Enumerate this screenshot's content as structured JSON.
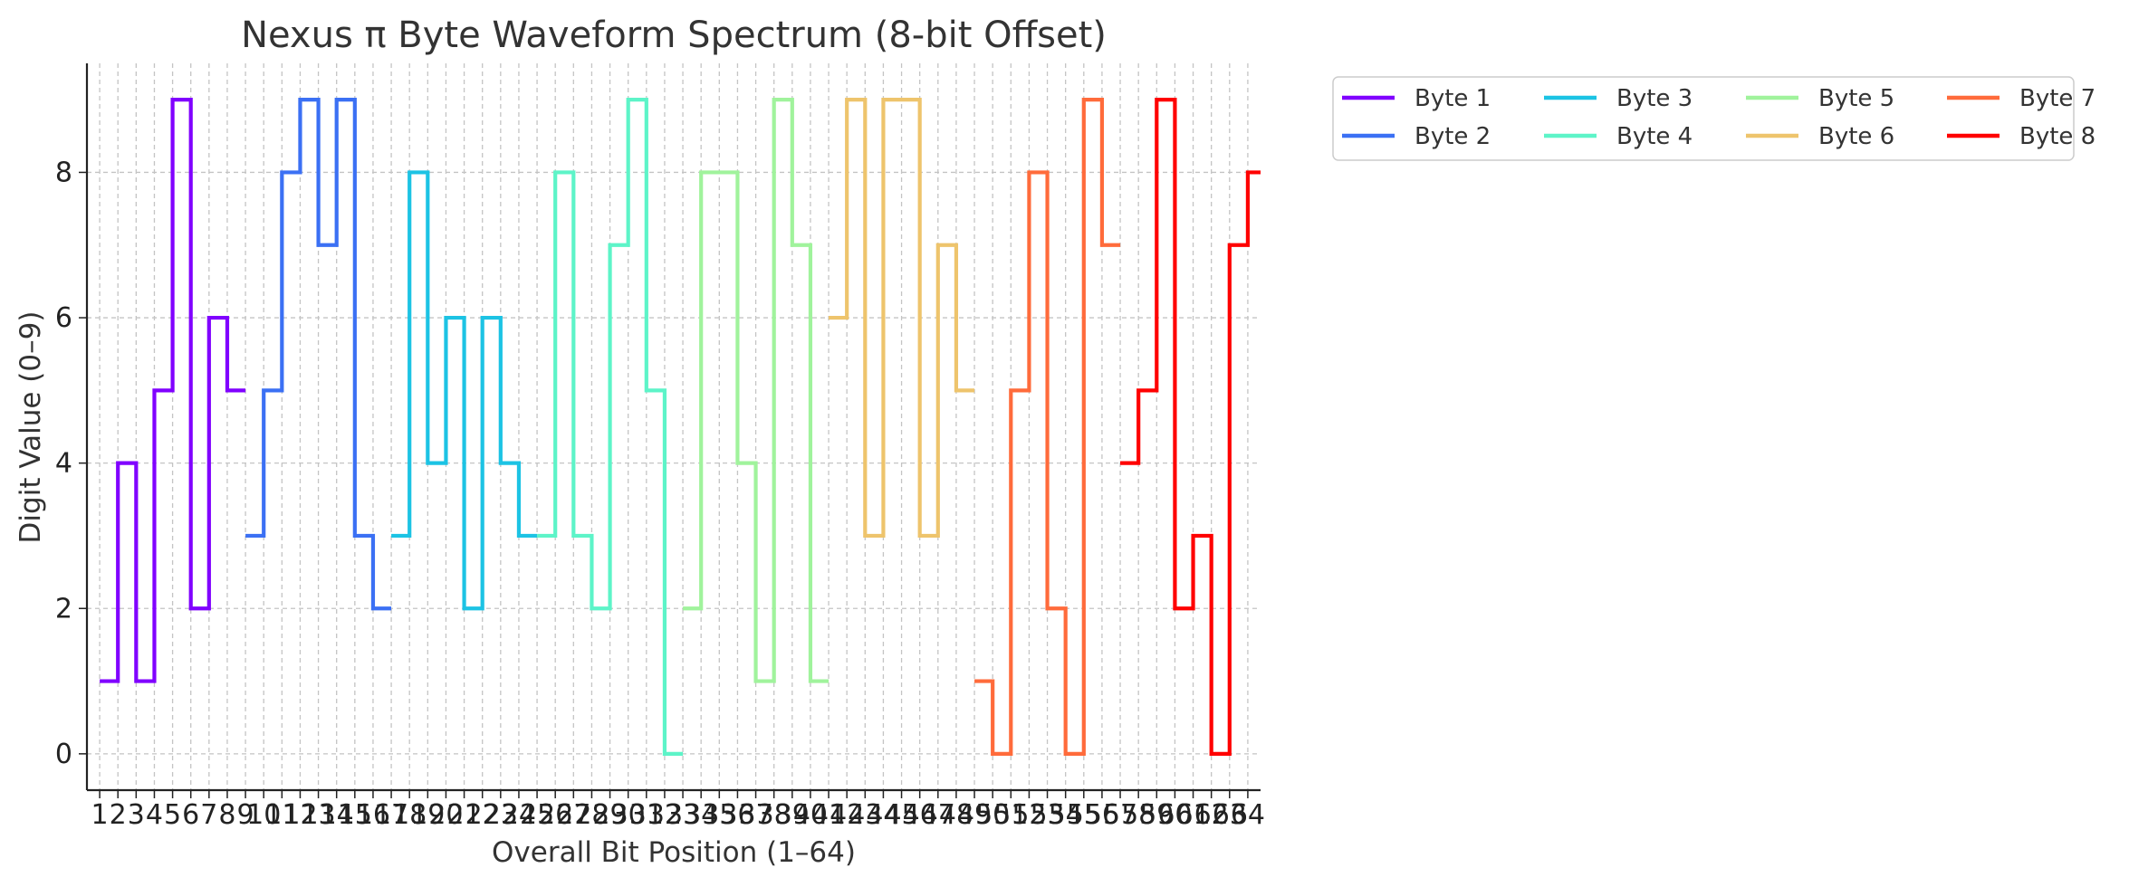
{
  "chart_data": {
    "type": "line",
    "title": "Nexus π Byte Waveform Spectrum (8-bit Offset)",
    "xlabel": "Overall Bit Position (1–64)",
    "ylabel": "Digit Value (0–9)",
    "xlim": [
      0.3,
      64.7
    ],
    "ylim": [
      -0.5,
      9.5
    ],
    "y_ticks": [
      0,
      2,
      4,
      6,
      8
    ],
    "x_ticks": [
      1,
      2,
      3,
      4,
      5,
      6,
      7,
      8,
      9,
      10,
      11,
      12,
      13,
      14,
      15,
      16,
      17,
      18,
      19,
      20,
      21,
      22,
      23,
      24,
      25,
      26,
      27,
      28,
      29,
      30,
      31,
      32,
      33,
      34,
      35,
      36,
      37,
      38,
      39,
      40,
      41,
      42,
      43,
      44,
      45,
      46,
      47,
      48,
      49,
      50,
      51,
      52,
      53,
      54,
      55,
      56,
      57,
      58,
      59,
      60,
      61,
      62,
      63,
      64
    ],
    "grid": true,
    "legend_position": "outside-top-right",
    "line_style": "step-post",
    "series": [
      {
        "name": "Byte 1",
        "color": "#8000ff",
        "x": [
          1,
          2,
          3,
          4,
          5,
          6,
          7,
          8
        ],
        "values": [
          1,
          4,
          1,
          5,
          9,
          2,
          6,
          5
        ]
      },
      {
        "name": "Byte 2",
        "color": "#3b70f4",
        "x": [
          9,
          10,
          11,
          12,
          13,
          14,
          15,
          16
        ],
        "values": [
          3,
          5,
          8,
          9,
          7,
          9,
          3,
          2
        ]
      },
      {
        "name": "Byte 3",
        "color": "#1cc3e4",
        "x": [
          17,
          18,
          19,
          20,
          21,
          22,
          23,
          24
        ],
        "values": [
          3,
          8,
          4,
          6,
          2,
          6,
          4,
          3
        ]
      },
      {
        "name": "Byte 4",
        "color": "#5df4c8",
        "x": [
          25,
          26,
          27,
          28,
          29,
          30,
          31,
          32
        ],
        "values": [
          3,
          8,
          3,
          2,
          7,
          9,
          5,
          0
        ]
      },
      {
        "name": "Byte 5",
        "color": "#a0f39c",
        "x": [
          33,
          34,
          35,
          36,
          37,
          38,
          39,
          40
        ],
        "values": [
          2,
          8,
          8,
          4,
          1,
          9,
          7,
          1
        ]
      },
      {
        "name": "Byte 6",
        "color": "#eec46c",
        "x": [
          41,
          42,
          43,
          44,
          45,
          46,
          47,
          48
        ],
        "values": [
          6,
          9,
          3,
          9,
          9,
          3,
          7,
          5
        ]
      },
      {
        "name": "Byte 7",
        "color": "#ff6b3b",
        "x": [
          49,
          50,
          51,
          52,
          53,
          54,
          55,
          56
        ],
        "values": [
          1,
          0,
          5,
          8,
          2,
          0,
          9,
          7
        ]
      },
      {
        "name": "Byte 8",
        "color": "#ff0000",
        "x": [
          57,
          58,
          59,
          60,
          61,
          62,
          63,
          64
        ],
        "values": [
          4,
          5,
          9,
          2,
          3,
          0,
          7,
          8
        ]
      }
    ]
  }
}
